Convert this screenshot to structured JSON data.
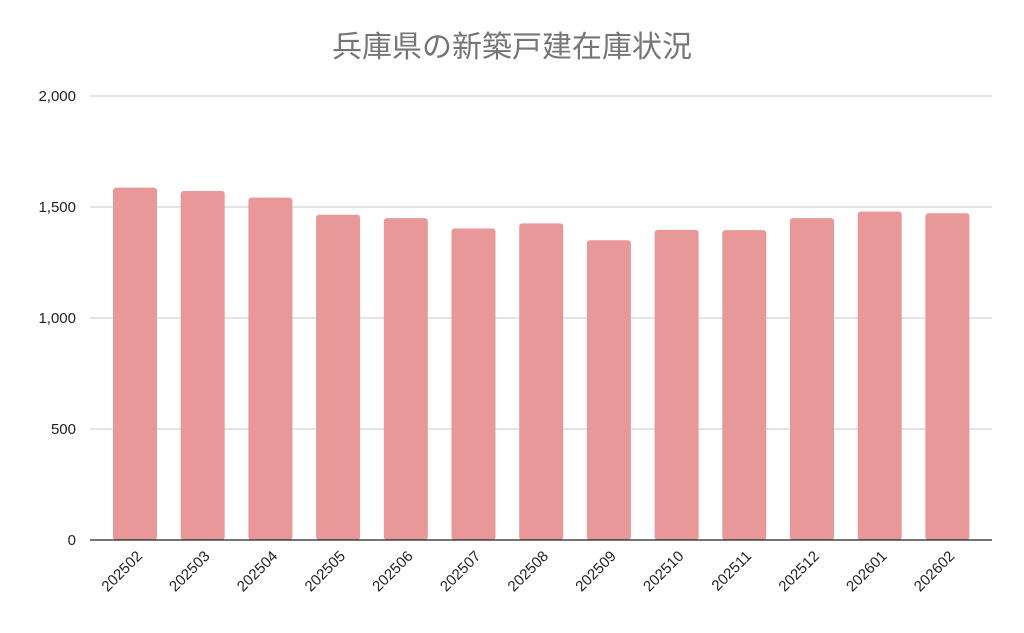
{
  "chart_data": {
    "type": "bar",
    "title": "兵庫県の新築戸建在庫状況",
    "xlabel": "",
    "ylabel": "",
    "categories": [
      "202502",
      "202503",
      "202504",
      "202505",
      "202506",
      "202507",
      "202508",
      "202509",
      "202510",
      "202511",
      "202512",
      "202601",
      "202602"
    ],
    "values": [
      1587,
      1572,
      1542,
      1465,
      1450,
      1403,
      1426,
      1350,
      1397,
      1396,
      1450,
      1480,
      1472
    ],
    "ylim": [
      0,
      2000
    ],
    "yticks": [
      0,
      500,
      1000,
      1500,
      2000
    ],
    "ytick_labels": [
      "0",
      "500",
      "1,000",
      "1,500",
      "2,000"
    ],
    "grid": true,
    "legend": "none",
    "bar_color": "#e89898"
  }
}
